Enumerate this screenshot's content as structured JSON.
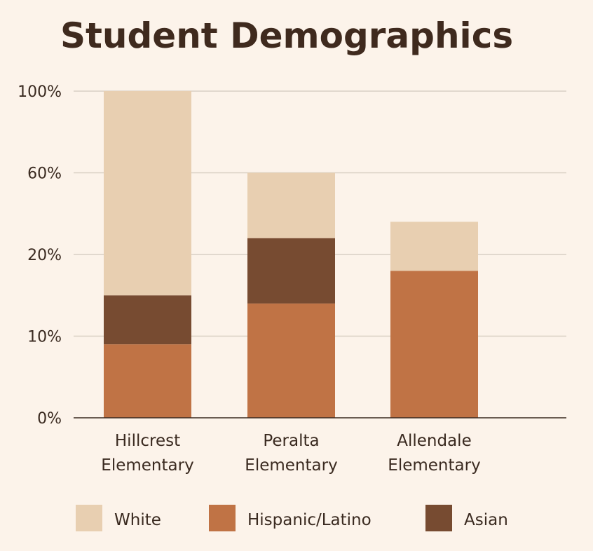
{
  "chart_data": {
    "type": "bar",
    "stacked": true,
    "title": "Student Demographics",
    "xlabel": "",
    "ylabel": "",
    "y_ticks": [
      "0%",
      "10%",
      "20%",
      "60%",
      "100%"
    ],
    "y_tick_values": [
      0,
      10,
      20,
      60,
      100
    ],
    "ylim": [
      0,
      100
    ],
    "grid": true,
    "legend_position": "bottom",
    "categories": [
      [
        "Hillcrest",
        "Elementary"
      ],
      [
        "Peralta",
        "Elementary"
      ],
      [
        "Allendale",
        "Elementary"
      ]
    ],
    "series": [
      {
        "name": "Hispanic/Latino",
        "color": "#C07345",
        "values": [
          9,
          14,
          18
        ]
      },
      {
        "name": "Asian",
        "color": "#774B31",
        "values": [
          6,
          14,
          0
        ]
      },
      {
        "name": "White",
        "color": "#E8CFB1",
        "values": [
          85,
          32,
          18
        ]
      }
    ],
    "legend": [
      {
        "name": "White",
        "color": "#E8CFB1"
      },
      {
        "name": "Hispanic/Latino",
        "color": "#C07345"
      },
      {
        "name": "Asian",
        "color": "#774B31"
      }
    ]
  }
}
